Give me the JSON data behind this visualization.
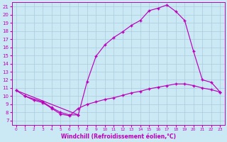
{
  "xlabel": "Windchill (Refroidissement éolien,°C)",
  "bg_color": "#cbe9f5",
  "line_color": "#bb00bb",
  "grid_color": "#aaccdd",
  "xlim": [
    -0.5,
    23.5
  ],
  "ylim": [
    6.5,
    21.5
  ],
  "xticks": [
    0,
    1,
    2,
    3,
    4,
    5,
    6,
    7,
    8,
    9,
    10,
    11,
    12,
    13,
    14,
    15,
    16,
    17,
    18,
    19,
    20,
    21,
    22,
    23
  ],
  "yticks": [
    7,
    8,
    9,
    10,
    11,
    12,
    13,
    14,
    15,
    16,
    17,
    18,
    19,
    20,
    21
  ],
  "line1_x": [
    1,
    3,
    4,
    5,
    6,
    7
  ],
  "line1_y": [
    10.0,
    9.3,
    8.6,
    8.0,
    7.7,
    7.7
  ],
  "line2_x": [
    0,
    1,
    2,
    3,
    4,
    5,
    6,
    7,
    8,
    9,
    10,
    11,
    12,
    13,
    14,
    15,
    16,
    17,
    18,
    19,
    20,
    21,
    22,
    23
  ],
  "line2_y": [
    10.7,
    10.0,
    9.5,
    9.2,
    8.5,
    7.8,
    7.6,
    8.5,
    9.0,
    9.3,
    9.6,
    9.8,
    10.1,
    10.4,
    10.6,
    10.9,
    11.1,
    11.3,
    11.5,
    11.5,
    11.3,
    11.0,
    10.8,
    10.5
  ],
  "line3_x": [
    0,
    7,
    8,
    9,
    10,
    11,
    12,
    13,
    14,
    15,
    16,
    17,
    18,
    19,
    20,
    21,
    22,
    23
  ],
  "line3_y": [
    10.7,
    7.7,
    11.8,
    14.9,
    16.3,
    17.2,
    17.9,
    18.7,
    19.3,
    20.5,
    20.8,
    21.2,
    20.4,
    19.3,
    15.5,
    12.0,
    11.7,
    10.5
  ]
}
